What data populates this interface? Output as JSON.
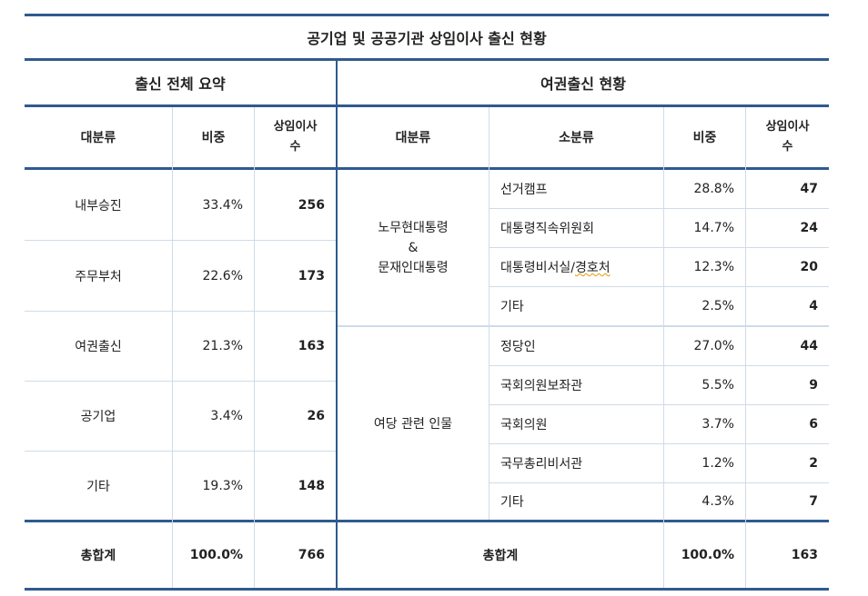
{
  "title": "공기업 및 공공기관 상임이사 출신 현황",
  "left_header": "출신 전체 요약",
  "right_header": "여권출신 현황",
  "columns": {
    "major": "대분류",
    "ratio": "비중",
    "count_line1": "상임이사",
    "count_line2": "수",
    "minor": "소분류"
  },
  "summary_rows": [
    {
      "category": "내부승진",
      "ratio": "33.4%",
      "count": "256"
    },
    {
      "category": "주무부처",
      "ratio": "22.6%",
      "count": "173"
    },
    {
      "category": "여권출신",
      "ratio": "21.3%",
      "count": "163"
    },
    {
      "category": "공기업",
      "ratio": "3.4%",
      "count": "26"
    },
    {
      "category": "기타",
      "ratio": "19.3%",
      "count": "148"
    }
  ],
  "group1": {
    "line1": "노무현대통령",
    "line2": "&",
    "line3": "문재인대통령"
  },
  "group2": {
    "label": "여당 관련 인물"
  },
  "detail_rows": [
    {
      "minor": "선거캠프",
      "ratio": "28.8%",
      "count": "47"
    },
    {
      "minor": "대통령직속위원회",
      "ratio": "14.7%",
      "count": "24"
    },
    {
      "minor_main": "대통령비서실/",
      "minor_tail": "경호처",
      "ratio": "12.3%",
      "count": "20"
    },
    {
      "minor": "기타",
      "ratio": "2.5%",
      "count": "4"
    },
    {
      "minor": "정당인",
      "ratio": "27.0%",
      "count": "44"
    },
    {
      "minor": "국회의원보좌관",
      "ratio": "5.5%",
      "count": "9"
    },
    {
      "minor": "국회의원",
      "ratio": "3.7%",
      "count": "6"
    },
    {
      "minor": "국무총리비서관",
      "ratio": "1.2%",
      "count": "2"
    },
    {
      "minor": "기타",
      "ratio": "4.3%",
      "count": "7"
    }
  ],
  "total_left": {
    "label": "총합계",
    "ratio": "100.0%",
    "count": "766"
  },
  "total_right": {
    "label": "총합계",
    "ratio": "100.0%",
    "count": "163"
  },
  "colors": {
    "rule": "#2f5a8f",
    "grid": "#cfdbe8",
    "squiggle": "#e0a000"
  }
}
